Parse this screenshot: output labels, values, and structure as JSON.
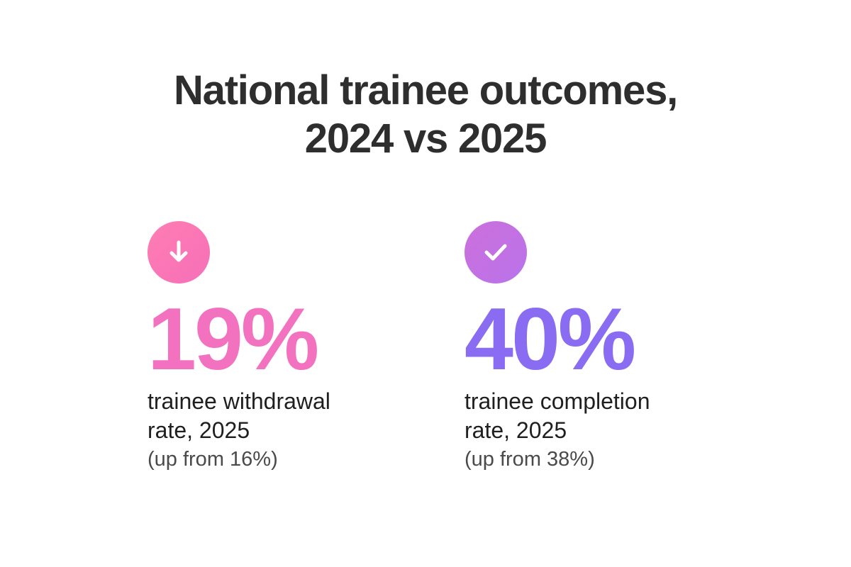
{
  "title": {
    "line1": "National trainee outcomes,",
    "line2": "2024 vs 2025"
  },
  "colors": {
    "pink": "#f272c0",
    "purple": "#8a6cf2",
    "text": "#2e2e2e"
  },
  "stats": [
    {
      "icon": "arrow-down-icon",
      "value": "19%",
      "label_line1": "trainee withdrawal",
      "label_line2": "rate, 2025",
      "note": "(up from 16%)"
    },
    {
      "icon": "check-icon",
      "value": "40%",
      "label_line1": "trainee completion",
      "label_line2": "rate, 2025",
      "note": "(up from 38%)"
    }
  ]
}
